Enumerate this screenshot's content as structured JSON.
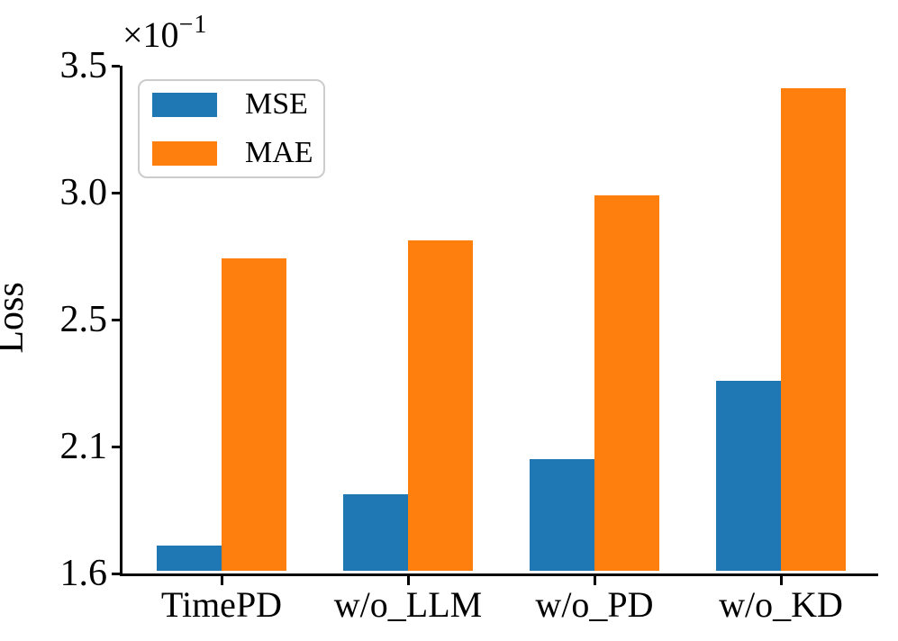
{
  "chart_data": {
    "type": "bar",
    "title": "",
    "xlabel": "",
    "ylabel": "Loss",
    "offset_multiplier": "×10",
    "offset_exponent": "−1",
    "categories": [
      "TimePD",
      "w/o_LLM",
      "w/o_PD",
      "w/o_KD"
    ],
    "series": [
      {
        "name": "MSE",
        "color": "#1f77b4",
        "values": [
          1.7,
          1.9,
          2.04,
          2.3
        ]
      },
      {
        "name": "MAE",
        "color": "#ff7f0e",
        "values": [
          2.73,
          2.8,
          2.98,
          3.4
        ]
      }
    ],
    "y_ticks": [
      1.6,
      2.1,
      2.5,
      3.0,
      3.5
    ],
    "y_tick_labels": [
      "1.6",
      "2.1",
      "2.5",
      "3.0",
      "3.5"
    ],
    "ylim": [
      1.6,
      3.5
    ],
    "y_ticks_evenly_spaced": true,
    "units_note": "values shown in axis units of 10^-1",
    "grid": false,
    "legend_position": "upper left",
    "background_color": "#ffffff",
    "axis_color": "#000000"
  }
}
